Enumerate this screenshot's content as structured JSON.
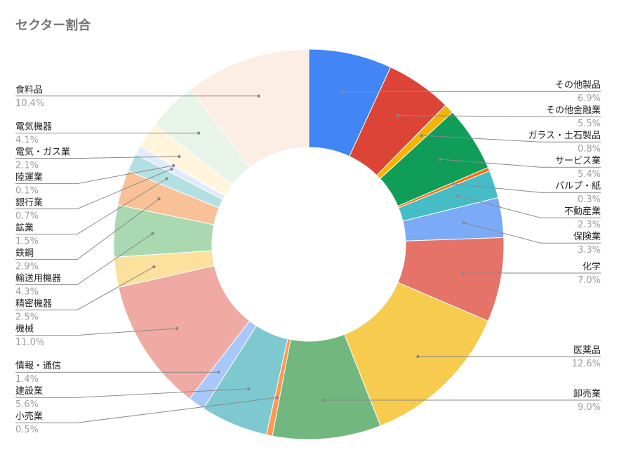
{
  "chart_data": {
    "type": "pie",
    "title": "セクター割合",
    "donut": true,
    "labels_show": "name-and-percent",
    "slices": [
      {
        "name": "その他製品",
        "value": 6.9,
        "label": "6.9%",
        "color": "#4285f4"
      },
      {
        "name": "その他金融業",
        "value": 5.5,
        "label": "5.5%",
        "color": "#db4437"
      },
      {
        "name": "ガラス・土石製品",
        "value": 0.8,
        "label": "0.8%",
        "color": "#f4b400"
      },
      {
        "name": "サービス業",
        "value": 5.4,
        "label": "5.4%",
        "color": "#0f9d58"
      },
      {
        "name": "パルプ・紙",
        "value": 0.3,
        "label": "0.3%",
        "color": "#ff6d00"
      },
      {
        "name": "不動産業",
        "value": 2.3,
        "label": "2.3%",
        "color": "#46bdc6"
      },
      {
        "name": "保険業",
        "value": 3.3,
        "label": "3.3%",
        "color": "#7baaf7"
      },
      {
        "name": "化学",
        "value": 7.0,
        "label": "7.0%",
        "color": "#e57368"
      },
      {
        "name": "医薬品",
        "value": 12.6,
        "label": "12.6%",
        "color": "#f7cb4d"
      },
      {
        "name": "卸売業",
        "value": 9.0,
        "label": "9.0%",
        "color": "#71b77e"
      },
      {
        "name": "小売業",
        "value": 0.5,
        "label": "0.5%",
        "color": "#ff994d"
      },
      {
        "name": "建設業",
        "value": 5.6,
        "label": "5.6%",
        "color": "#7ec8d0"
      },
      {
        "name": "情報・通信",
        "value": 1.4,
        "label": "1.4%",
        "color": "#a8c7fa"
      },
      {
        "name": "機械",
        "value": 11.0,
        "label": "11.0%",
        "color": "#eeaaa3"
      },
      {
        "name": "精密機器",
        "value": 2.5,
        "label": "2.5%",
        "color": "#fbe19b"
      },
      {
        "name": "輸送用機器",
        "value": 4.3,
        "label": "4.3%",
        "color": "#a9d8b1"
      },
      {
        "name": "鉄鋼",
        "value": 2.9,
        "label": "2.9%",
        "color": "#f9c197"
      },
      {
        "name": "鉱業",
        "value": 1.5,
        "label": "1.5%",
        "color": "#b3e0e3"
      },
      {
        "name": "銀行業",
        "value": 0.7,
        "label": "0.7%",
        "color": "#e0ebfd"
      },
      {
        "name": "陸運業",
        "value": 0.1,
        "label": "0.1%",
        "color": "#f5d3cf"
      },
      {
        "name": "電気・ガス業",
        "value": 2.1,
        "label": "2.1%",
        "color": "#fef5dc"
      },
      {
        "name": "電気機器",
        "value": 4.1,
        "label": "4.1%",
        "color": "#e8f3ea"
      },
      {
        "name": "食料品",
        "value": 10.4,
        "label": "10.4%",
        "color": "#fcede5"
      }
    ]
  }
}
